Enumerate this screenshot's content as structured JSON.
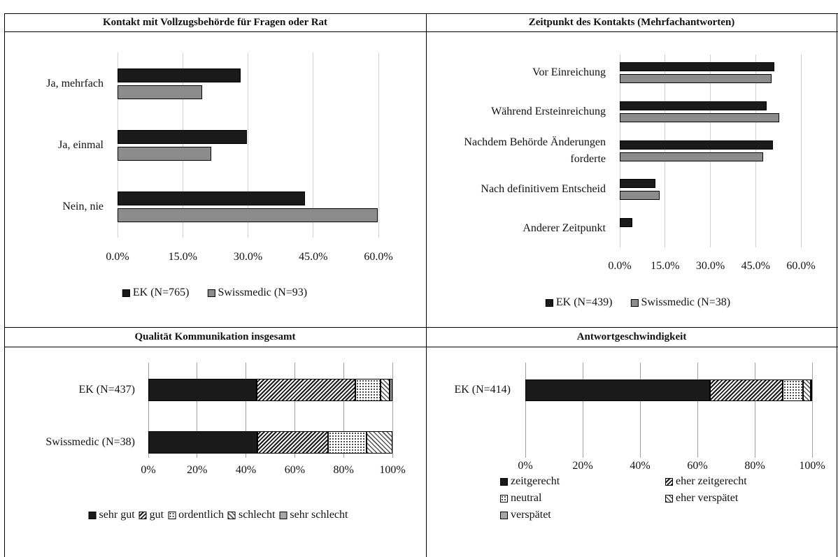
{
  "chart_data": [
    {
      "type": "bar",
      "title": "Kontakt mit Vollzugsbehörde für Fragen oder Rat",
      "categories": [
        "Ja, mehrfach",
        "Ja, einmal",
        "Nein, nie"
      ],
      "series": [
        {
          "name": "EK (N=765)",
          "color": "#1a1a1a",
          "values": [
            28.3,
            29.7,
            43.1
          ]
        },
        {
          "name": "Swissmedic (N=93)",
          "color": "#8c8c8c",
          "values": [
            19.4,
            21.5,
            59.8
          ]
        }
      ],
      "xlim": [
        0,
        60
      ],
      "xticks": [
        {
          "value": 0,
          "label": "0.0%"
        },
        {
          "value": 15,
          "label": "15.0%"
        },
        {
          "value": 30,
          "label": "30.0%"
        },
        {
          "value": 45,
          "label": "45.0%"
        },
        {
          "value": 60,
          "label": "60.0%"
        }
      ],
      "grid": true,
      "legend": "bottom"
    },
    {
      "type": "bar",
      "title": "Zeitpunkt des Kontakts (Mehrfachantworten)",
      "categories": [
        "Vor Einreichung",
        "Während Ersteinreichung",
        "Nachdem Behörde Änderungen forderte",
        "Nach definitivem Entscheid",
        "Anderer Zeitpunkt"
      ],
      "series": [
        {
          "name": "EK (N=439)",
          "color": "#1a1a1a",
          "values": [
            51.2,
            48.6,
            50.7,
            11.8,
            4.2
          ]
        },
        {
          "name": "Swissmedic (N=38)",
          "color": "#8c8c8c",
          "values": [
            50.2,
            52.8,
            47.5,
            13.2,
            0
          ]
        }
      ],
      "xlim": [
        0,
        60
      ],
      "xticks": [
        {
          "value": 0,
          "label": "0.0%"
        },
        {
          "value": 15,
          "label": "15.0%"
        },
        {
          "value": 30,
          "label": "30.0%"
        },
        {
          "value": 45,
          "label": "45.0%"
        },
        {
          "value": 60,
          "label": "60.0%"
        }
      ],
      "grid": true,
      "legend": "bottom"
    },
    {
      "type": "stacked_bar",
      "title": "Qualität Kommunikation insgesamt",
      "categories": [
        "EK (N=437)",
        "Swissmedic (N=38)"
      ],
      "series": [
        {
          "name": "sehr gut",
          "color": "#1a1a1a",
          "pattern": "solid",
          "values": [
            44.4,
            44.7
          ]
        },
        {
          "name": "gut",
          "color": "#1a1a1a",
          "pattern": "hatch",
          "values": [
            40.3,
            28.9
          ]
        },
        {
          "name": "ordentlich",
          "color": "#1a1a1a",
          "pattern": "dots",
          "values": [
            10.5,
            15.8
          ]
        },
        {
          "name": "schlecht",
          "color": "#555555",
          "pattern": "hatch-wide",
          "values": [
            3.7,
            10.5
          ]
        },
        {
          "name": "sehr schlecht",
          "color": "#a6a6a6",
          "pattern": "solid",
          "values": [
            1.1,
            0
          ]
        }
      ],
      "xlim": [
        0,
        100
      ],
      "xticks": [
        {
          "value": 0,
          "label": "0%"
        },
        {
          "value": 20,
          "label": "20%"
        },
        {
          "value": 40,
          "label": "40%"
        },
        {
          "value": 60,
          "label": "60%"
        },
        {
          "value": 80,
          "label": "80%"
        },
        {
          "value": 100,
          "label": "100%"
        }
      ],
      "grid": true,
      "legend": "bottom"
    },
    {
      "type": "stacked_bar",
      "title": "Antwortgeschwindigkeit",
      "categories": [
        "EK (N=414)"
      ],
      "series": [
        {
          "name": "zeitgerecht",
          "color": "#1a1a1a",
          "pattern": "solid",
          "values": [
            64.4
          ]
        },
        {
          "name": "eher zeitgerecht",
          "color": "#1a1a1a",
          "pattern": "hatch",
          "values": [
            25.4
          ]
        },
        {
          "name": "neutral",
          "color": "#1a1a1a",
          "pattern": "dots",
          "values": [
            7.1
          ]
        },
        {
          "name": "eher verspätet",
          "color": "#555555",
          "pattern": "hatch-wide",
          "values": [
            2.6
          ]
        },
        {
          "name": "verspätet",
          "color": "#a6a6a6",
          "pattern": "solid",
          "values": [
            0.5
          ]
        }
      ],
      "xlim": [
        0,
        100
      ],
      "xticks": [
        {
          "value": 0,
          "label": "0%"
        },
        {
          "value": 20,
          "label": "20%"
        },
        {
          "value": 40,
          "label": "40%"
        },
        {
          "value": 60,
          "label": "60%"
        },
        {
          "value": 80,
          "label": "80%"
        },
        {
          "value": 100,
          "label": "100%"
        }
      ],
      "grid": true,
      "legend": "bottom"
    }
  ]
}
